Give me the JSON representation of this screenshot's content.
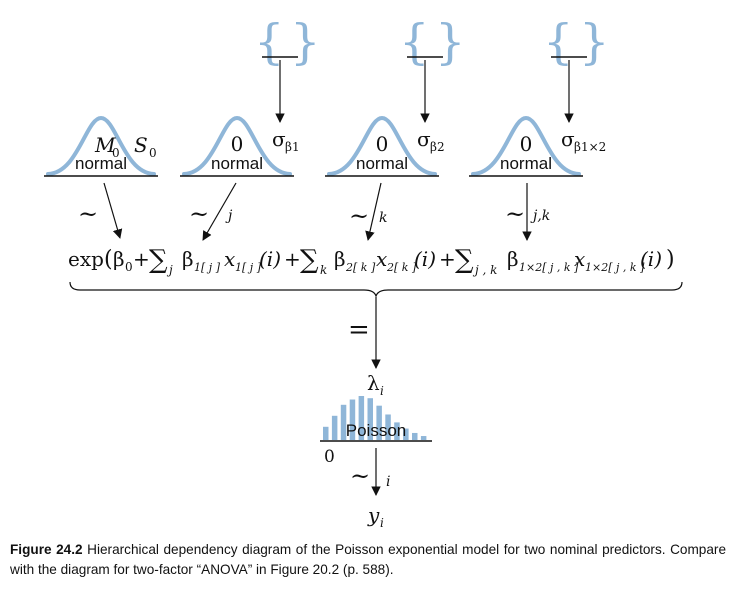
{
  "priors": [
    {
      "dist": "normal",
      "mean": "M",
      "mean_sub": "0",
      "sd": "S",
      "sd_sub": "0"
    },
    {
      "dist": "normal",
      "mean": "0",
      "sd": "σ",
      "sd_sub": "β1"
    },
    {
      "dist": "normal",
      "mean": "0",
      "sd": "σ",
      "sd_sub": "β2"
    },
    {
      "dist": "normal",
      "mean": "0",
      "sd": "σ",
      "sd_sub": "β1×2"
    }
  ],
  "tilde": "~",
  "edge_indices": [
    "j",
    "k",
    "j,k"
  ],
  "equation": {
    "exp": "exp",
    "open": "(",
    "beta": "β",
    "b0_sub": "0",
    "plus": "+",
    "sum": "∑",
    "sum_j": "j",
    "sum_k": "k",
    "sum_jk": "j , k",
    "b1_sub": "1[ j ]",
    "x": "x",
    "x1_sub": "1[ j ]",
    "b2_sub": "2[ k ]",
    "x2_sub": "2[ k ]",
    "b12_sub": "1×2[ j , k ]",
    "x12_sub": "1×2[ j , k ]",
    "i": "(i)",
    "close": ")"
  },
  "equals": "=",
  "lambda": "λ",
  "lambda_sub": "i",
  "likelihood": {
    "dist": "Poisson",
    "zero": "0",
    "bars": [
      0.3,
      0.55,
      0.8,
      0.92,
      1.0,
      0.95,
      0.78,
      0.58,
      0.4,
      0.26,
      0.16,
      0.09
    ]
  },
  "index_i": "i",
  "y": "y",
  "y_sub": "i",
  "caption": {
    "label": "Figure 24.2",
    "text": "Hierarchical dependency diagram of the Poisson exponential model for two nominal predictors. Compare with the diagram for two-factor “ANOVA” in Figure 20.2 (p. 588)."
  }
}
